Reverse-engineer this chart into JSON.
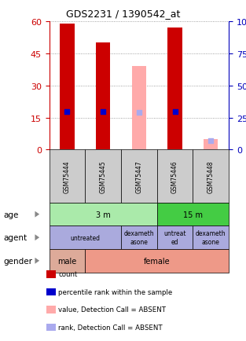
{
  "title": "GDS2231 / 1390542_at",
  "samples": [
    "GSM75444",
    "GSM75445",
    "GSM75447",
    "GSM75446",
    "GSM75448"
  ],
  "count_values": [
    59,
    50,
    0,
    57,
    0
  ],
  "rank_values": [
    29.5,
    29.5,
    0,
    29.5,
    0
  ],
  "absent_value_values": [
    0,
    0,
    39,
    0,
    5
  ],
  "absent_rank_values": [
    0,
    0,
    29,
    0,
    7
  ],
  "ylim_left": [
    0,
    60
  ],
  "ylim_right": [
    0,
    100
  ],
  "left_ticks": [
    0,
    15,
    30,
    45,
    60
  ],
  "right_ticks": [
    0,
    25,
    50,
    75,
    100
  ],
  "count_color": "#cc0000",
  "rank_color": "#0000cc",
  "absent_value_color": "#ffaaaa",
  "absent_rank_color": "#aaaaee",
  "age_labels": [
    [
      "3 m",
      0,
      3
    ],
    [
      "15 m",
      3,
      5
    ]
  ],
  "age_colors": [
    "#aaeaaa",
    "#44cc44"
  ],
  "agent_labels": [
    [
      "untreated",
      0,
      2
    ],
    [
      "dexameth\nasone",
      2,
      3
    ],
    [
      "untreat\ned",
      3,
      4
    ],
    [
      "dexameth\nasone",
      4,
      5
    ]
  ],
  "agent_color": "#aaaadd",
  "gender_labels": [
    [
      "male",
      0,
      1
    ],
    [
      "female",
      1,
      5
    ]
  ],
  "gender_color": "#ee9988",
  "gender_male_color": "#ddaa99",
  "legend_items": [
    {
      "color": "#cc0000",
      "label": "count"
    },
    {
      "color": "#0000cc",
      "label": "percentile rank within the sample"
    },
    {
      "color": "#ffaaaa",
      "label": "value, Detection Call = ABSENT"
    },
    {
      "color": "#aaaaee",
      "label": "rank, Detection Call = ABSENT"
    }
  ],
  "grid_color": "#888888",
  "sample_box_color": "#cccccc",
  "axis_left_color": "#cc0000",
  "axis_right_color": "#0000bb",
  "title_fontsize": 9,
  "bar_width": 0.4
}
